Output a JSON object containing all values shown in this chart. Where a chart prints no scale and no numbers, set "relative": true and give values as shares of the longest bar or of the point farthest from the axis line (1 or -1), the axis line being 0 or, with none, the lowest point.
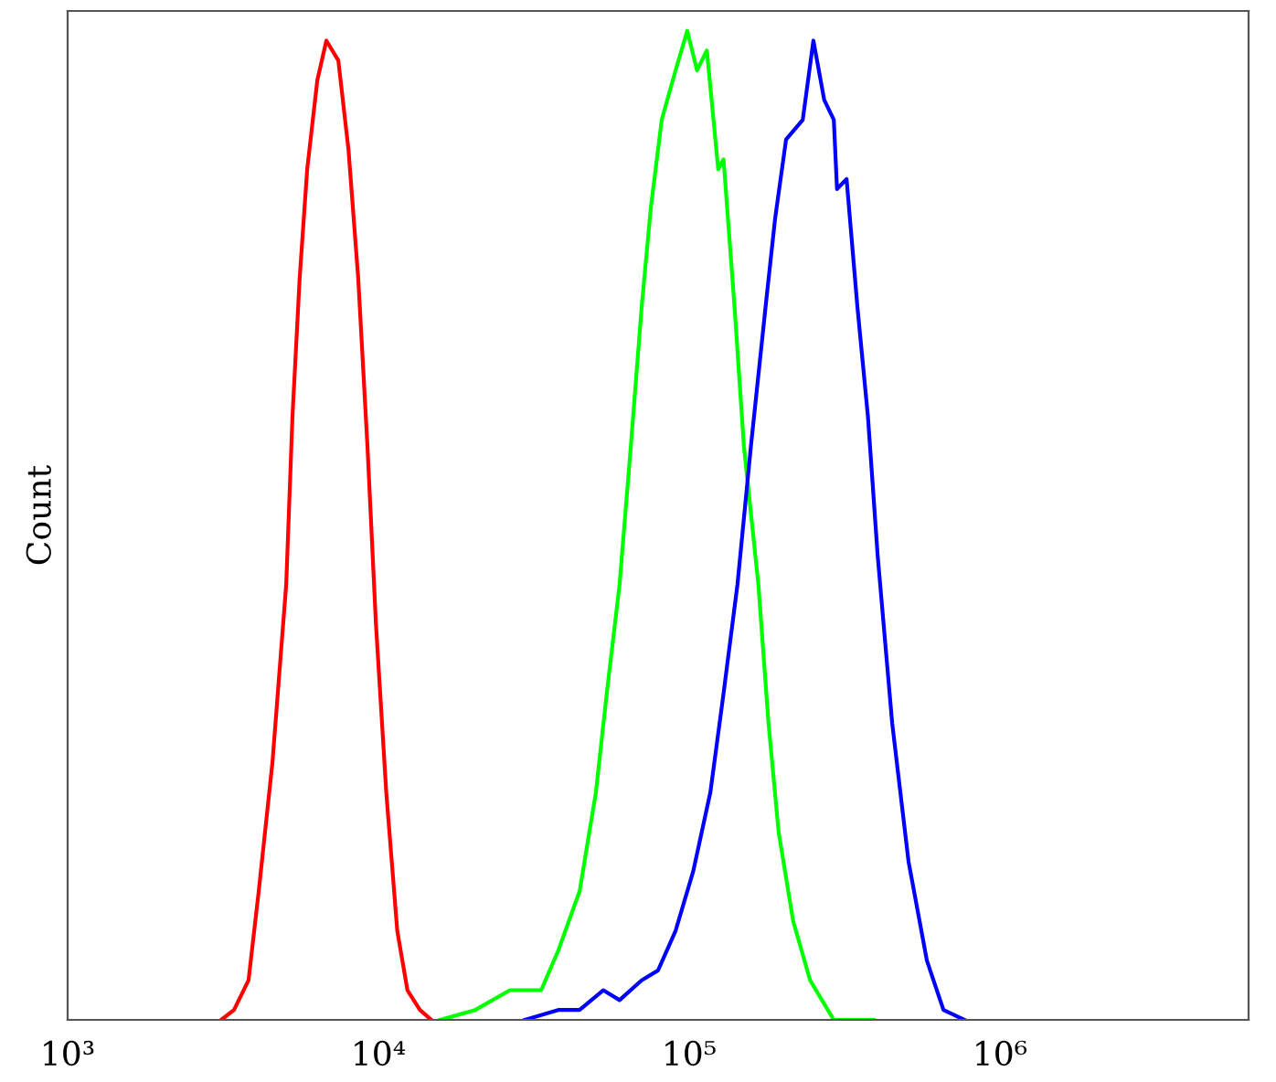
{
  "chart_data": {
    "type": "line",
    "relative": true,
    "ylabel": "Count",
    "log": "x",
    "xlim": [
      1000,
      6310000
    ],
    "xticks": [
      {
        "value": 1000,
        "label": "10³"
      },
      {
        "value": 10000,
        "label": "10⁴"
      },
      {
        "value": 100000,
        "label": "10⁵"
      },
      {
        "value": 1000000,
        "label": "10⁶"
      }
    ],
    "grid": false,
    "legend": false,
    "marker": "none",
    "line_style": "solid",
    "series": [
      {
        "color": "#ff0000",
        "x": [
          3120,
          3430,
          3820,
          4120,
          4560,
          5050,
          5290,
          5580,
          5900,
          6360,
          6800,
          7430,
          8010,
          8610,
          9220,
          9820,
          10600,
          11500,
          12400,
          13600,
          14800
        ],
        "values": [
          0,
          0.01,
          0.04,
          0.13,
          0.26,
          0.44,
          0.61,
          0.75,
          0.86,
          0.95,
          0.99,
          0.97,
          0.88,
          0.75,
          0.58,
          0.4,
          0.23,
          0.09,
          0.03,
          0.01,
          0
        ]
      },
      {
        "color": "#00ff00",
        "x": [
          15800,
          20500,
          26500,
          33400,
          37900,
          44400,
          50100,
          54300,
          59700,
          64900,
          70300,
          75200,
          81600,
          90400,
          98600,
          106000,
          114000,
          124000,
          129000,
          140000,
          150000,
          167000,
          180000,
          194000,
          216000,
          245000,
          292000,
          393000
        ],
        "values": [
          0,
          0.01,
          0.03,
          0.03,
          0.07,
          0.13,
          0.23,
          0.33,
          0.44,
          0.58,
          0.72,
          0.82,
          0.91,
          0.96,
          1,
          0.96,
          0.98,
          0.86,
          0.87,
          0.72,
          0.58,
          0.44,
          0.3,
          0.19,
          0.1,
          0.04,
          0,
          0
        ]
      },
      {
        "color": "#0000ff",
        "x": [
          29600,
          37900,
          44400,
          52900,
          59700,
          70300,
          79400,
          90400,
          103000,
          117000,
          129000,
          143000,
          158000,
          176000,
          189000,
          205000,
          232000,
          251000,
          272000,
          292000,
          299000,
          321000,
          348000,
          376000,
          404000,
          450000,
          508000,
          582000,
          658000,
          769000
        ],
        "values": [
          0,
          0.01,
          0.01,
          0.03,
          0.02,
          0.04,
          0.05,
          0.09,
          0.15,
          0.23,
          0.33,
          0.44,
          0.58,
          0.72,
          0.81,
          0.89,
          0.91,
          0.99,
          0.93,
          0.91,
          0.84,
          0.85,
          0.72,
          0.61,
          0.47,
          0.3,
          0.16,
          0.06,
          0.01,
          0
        ]
      }
    ]
  }
}
